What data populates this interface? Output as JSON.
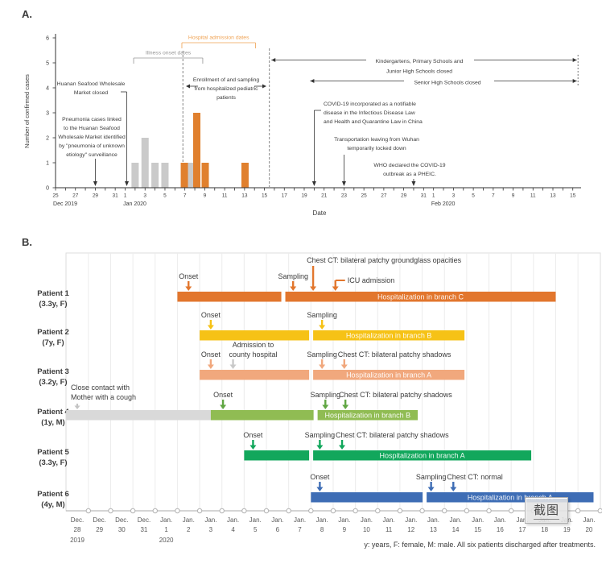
{
  "figure": {
    "panel_a_label": "A.",
    "panel_b_label": "B."
  },
  "overlay": {
    "button_label": "截图"
  },
  "chart_data": [
    {
      "type": "bar",
      "panel": "A",
      "ylabel": "Number of confirmed cases",
      "xlabel": "Date",
      "ylim": [
        0,
        6
      ],
      "x_start_date": "Dec 25, 2019",
      "x_end_date": "Feb 15, 2020",
      "month_labels": [
        {
          "label": "Dec 2019",
          "day": 0
        },
        {
          "label": "Jan 2020",
          "day": 7
        },
        {
          "label": "Feb 2020",
          "day": 38
        }
      ],
      "series": [
        {
          "name": "Illness onset dates",
          "color": "#CACACA",
          "label_color": "#969696",
          "bracket_days": [
            7.85,
            14.8
          ],
          "points": [
            {
              "date": "Jan 2",
              "day": 8,
              "count": 1
            },
            {
              "date": "Jan 3",
              "day": 9,
              "count": 2
            },
            {
              "date": "Jan 4",
              "day": 10,
              "count": 1
            },
            {
              "date": "Jan 5",
              "day": 11,
              "count": 1
            },
            {
              "date": "Jan 8",
              "day": 13.6,
              "count": 1
            }
          ]
        },
        {
          "name": "Hospital admission dates",
          "color": "#E0802E",
          "label_color": "#EFA151",
          "bracket_days": [
            12.7,
            20.1
          ],
          "points": [
            {
              "date": "Jan 7",
              "day": 12.95,
              "count": 1
            },
            {
              "date": "Jan 8",
              "day": 14.2,
              "count": 3
            },
            {
              "date": "Jan 9",
              "day": 15.05,
              "count": 1
            },
            {
              "date": "Jan 13",
              "day": 19.05,
              "count": 1
            }
          ]
        }
      ],
      "enrollment_window_days": [
        12.8,
        21.5
      ],
      "annotations": [
        {
          "id": "market_closed",
          "lines": [
            "Huanan Seafood Wholesale",
            "Market closed"
          ],
          "arrow_day": 7
        },
        {
          "id": "pneumonia",
          "lines": [
            "Pneumonia cases linked",
            "to the Huanan Seafood",
            "Wholesale Market identified",
            "by \"pneumonia of unknown",
            "etiology\" surveillance"
          ],
          "arrow_day": 4
        },
        {
          "id": "enrollment",
          "lines": [
            "Enrollment of and sampling",
            "from hospitalized pediatric",
            "patients"
          ]
        },
        {
          "id": "covid_law",
          "lines": [
            "COVID-19 incorporated as a notifiable",
            "disease in the Infectious Disease Law",
            "and Health and Quarantine Law in China"
          ],
          "arrow_day": 26
        },
        {
          "id": "transport",
          "lines": [
            "Transportation leaving from Wuhan",
            "temporarily locked down"
          ],
          "arrow_day": 29
        },
        {
          "id": "who",
          "lines": [
            "WHO declared the COVID-19",
            "outbreak as a PHEIC."
          ],
          "arrow_day": 36
        },
        {
          "id": "kindergarten",
          "lines": [
            "Kindergartens, Primary Schools and",
            "Junior High Schools closed"
          ],
          "span_days": [
            21.7,
            52.4
          ]
        },
        {
          "id": "senior",
          "lines": [
            "Senior High Schools closed"
          ],
          "span_days": [
            25.6,
            52.4
          ]
        }
      ]
    },
    {
      "type": "timeline",
      "panel": "B",
      "x_start_date": "Dec 28, 2019",
      "x_end_date": "Jan 20, 2020",
      "footnote": "y: years, F: female, M: male. All six patients discharged after treatments.",
      "year_labels": [
        {
          "label": "2019",
          "day": 0
        },
        {
          "label": "2020",
          "day": 4
        }
      ],
      "patients": [
        {
          "name": "Patient 1",
          "info": "(3.3y, F)",
          "color": "#E2762D",
          "segments": [
            {
              "from": 4.5,
              "to": 9.17
            },
            {
              "from": 9.35,
              "to": 21.5
            }
          ],
          "hospital_label": "Hospitalization in branch C",
          "hospital_segment": 1,
          "events": [
            {
              "label": "Onset",
              "date": "Jan 2",
              "day": 5,
              "kind": "straight",
              "align": "center"
            },
            {
              "label": "Sampling",
              "date": "Jan 7",
              "day": 9.7,
              "kind": "straight",
              "align": "center"
            },
            {
              "label": "Chest CT: bilateral patchy groundglass opacities",
              "date": "Jan 8",
              "day": 10.6,
              "kind": "long",
              "align": "left"
            },
            {
              "label": "ICU admission",
              "date": "Jan 9",
              "day": 11.6,
              "kind": "bent",
              "align": "right"
            }
          ]
        },
        {
          "name": "Patient 2",
          "info": "(7y, F)",
          "color": "#F6C216",
          "segments": [
            {
              "from": 5.5,
              "to": 10.42
            },
            {
              "from": 10.6,
              "to": 17.4
            }
          ],
          "hospital_label": "Hospitalization in branch B",
          "hospital_segment": 1,
          "events": [
            {
              "label": "Onset",
              "date": "Jan 3",
              "day": 6,
              "kind": "straight",
              "align": "center"
            },
            {
              "label": "Sampling",
              "date": "Jan 8",
              "day": 11,
              "kind": "straight",
              "align": "center"
            }
          ]
        },
        {
          "name": "Patient 3",
          "info": "(3.2y, F)",
          "color": "#F1A87D",
          "segments": [
            {
              "from": 5.5,
              "to": 10.42
            },
            {
              "from": 10.6,
              "to": 17.4
            }
          ],
          "hospital_label": "Hospitalization in branch A",
          "hospital_segment": 1,
          "events": [
            {
              "label": "Onset",
              "date": "Jan 3",
              "day": 6,
              "kind": "straight",
              "align": "center"
            },
            {
              "label": "Admission to\ncounty hospital",
              "date": "Jan 4",
              "day": 7,
              "kind": "straight",
              "align": "center-right",
              "color": "#C9C9C9"
            },
            {
              "label": "Sampling",
              "date": "Jan 8",
              "day": 11,
              "kind": "straight",
              "align": "center"
            },
            {
              "label": "Chest CT: bilateral patchy shadows",
              "date": "Jan 9",
              "day": 12,
              "kind": "straight",
              "align": "left"
            }
          ]
        },
        {
          "name": "Patient 4",
          "info": "(1y, M)",
          "color": "#90BC53",
          "arrow_color": "#61A744",
          "segments": [
            {
              "from": -0.5,
              "to": 6.0,
              "color": "#D9D9D9"
            },
            {
              "from": 6.0,
              "to": 10.62
            },
            {
              "from": 10.8,
              "to": 15.3
            }
          ],
          "hospital_label": "Hospitalization in branch B",
          "hospital_segment": 2,
          "events": [
            {
              "label": "Close contact with\nMother with a cough",
              "date": "Dec 28",
              "day": 0,
              "kind": "short",
              "align": "left-block",
              "color": "#C4C4C4"
            },
            {
              "label": "Onset",
              "date": "Jan 4",
              "day": 6.55,
              "kind": "straight",
              "align": "center"
            },
            {
              "label": "Sampling",
              "date": "Jan 8",
              "day": 11.15,
              "kind": "straight",
              "align": "center"
            },
            {
              "label": "Chest CT: bilateral patchy shadows",
              "date": "Jan 9",
              "day": 12.05,
              "kind": "straight",
              "align": "left"
            }
          ]
        },
        {
          "name": "Patient 5",
          "info": "(3.3y, F)",
          "color": "#12A75C",
          "segments": [
            {
              "from": 7.5,
              "to": 10.42
            },
            {
              "from": 10.6,
              "to": 20.4
            }
          ],
          "hospital_label": "Hospitalization in branch A",
          "hospital_segment": 1,
          "events": [
            {
              "label": "Onset",
              "date": "Jan 5",
              "day": 7.9,
              "kind": "straight",
              "align": "center"
            },
            {
              "label": "Sampling",
              "date": "Jan 8",
              "day": 10.9,
              "kind": "straight",
              "align": "center"
            },
            {
              "label": "Chest CT: bilateral patchy shadows",
              "date": "Jan 9",
              "day": 11.9,
              "kind": "straight",
              "align": "left"
            }
          ]
        },
        {
          "name": "Patient 6",
          "info": "(4y, M)",
          "color": "#3E6DB5",
          "segments": [
            {
              "from": 10.5,
              "to": 15.52
            },
            {
              "from": 15.7,
              "to": 23.2
            }
          ],
          "hospital_label": "Hospitalization in branch A",
          "hospital_segment": 1,
          "events": [
            {
              "label": "Onset",
              "date": "Jan 8",
              "day": 10.9,
              "kind": "straight",
              "align": "center"
            },
            {
              "label": "Sampling",
              "date": "Jan 13",
              "day": 15.9,
              "kind": "straight",
              "align": "center"
            },
            {
              "label": "Chest CT: normal",
              "date": "Jan 14",
              "day": 16.9,
              "kind": "straight",
              "align": "left"
            }
          ]
        }
      ]
    }
  ]
}
